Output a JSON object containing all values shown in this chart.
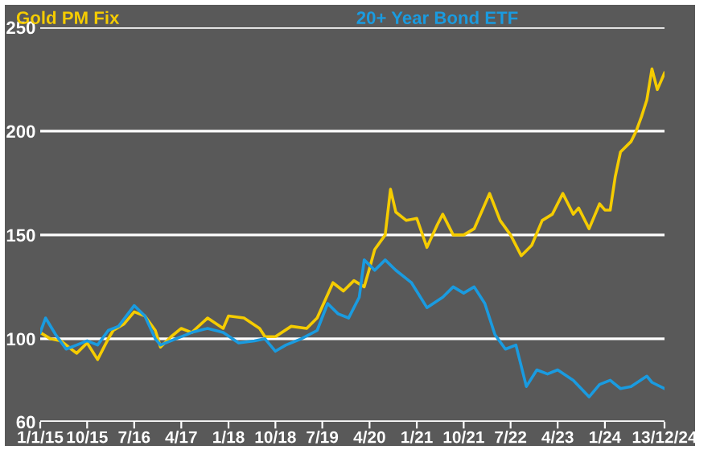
{
  "chart_data": {
    "type": "line",
    "ylim": [
      60,
      250
    ],
    "yticks": [
      60,
      100,
      150,
      200,
      250
    ],
    "grid": "y",
    "xlim": [
      "2015-01-01",
      "2024-12-13"
    ],
    "xticks": [
      {
        "value": "2015-01-01",
        "label": "1/1/15"
      },
      {
        "value": "2015-10-01",
        "label": "10/15"
      },
      {
        "value": "2016-07-01",
        "label": "7/16"
      },
      {
        "value": "2017-04-01",
        "label": "4/17"
      },
      {
        "value": "2018-01-01",
        "label": "1/18"
      },
      {
        "value": "2018-10-01",
        "label": "10/18"
      },
      {
        "value": "2019-07-01",
        "label": "7/19"
      },
      {
        "value": "2020-04-01",
        "label": "4/20"
      },
      {
        "value": "2021-01-01",
        "label": "1/21"
      },
      {
        "value": "2021-10-01",
        "label": "10/21"
      },
      {
        "value": "2022-07-01",
        "label": "7/22"
      },
      {
        "value": "2023-04-01",
        "label": "4/23"
      },
      {
        "value": "2024-01-01",
        "label": "1/24"
      },
      {
        "value": "2024-12-13",
        "label": "13/12/24"
      }
    ],
    "series": [
      {
        "name": "Gold PM Fix",
        "color": "#f5cc00",
        "x": [
          "2015-01-01",
          "2015-03",
          "2015-05",
          "2015-07",
          "2015-08",
          "2015-10",
          "2015-12",
          "2016-02",
          "2016-03",
          "2016-05",
          "2016-07",
          "2016-09",
          "2016-11",
          "2016-12",
          "2017-02",
          "2017-04",
          "2017-06",
          "2017-09",
          "2017-12",
          "2018-01",
          "2018-04",
          "2018-07",
          "2018-08",
          "2018-10",
          "2019-01",
          "2019-04",
          "2019-06",
          "2019-09",
          "2019-11",
          "2020-01",
          "2020-03",
          "2020-04",
          "2020-05",
          "2020-07",
          "2020-08",
          "2020-09",
          "2020-11",
          "2021-01",
          "2021-03",
          "2021-05",
          "2021-06",
          "2021-08",
          "2021-10",
          "2021-12",
          "2022-03",
          "2022-05",
          "2022-07",
          "2022-09",
          "2022-11",
          "2023-01",
          "2023-03",
          "2023-05",
          "2023-07",
          "2023-08",
          "2023-10",
          "2023-12",
          "2024-01",
          "2024-02",
          "2024-03",
          "2024-04",
          "2024-06",
          "2024-07",
          "2024-08",
          "2024-09",
          "2024-10",
          "2024-11",
          "2024-12-13"
        ],
        "values": [
          103,
          100,
          99,
          95,
          93,
          98,
          90,
          100,
          104,
          107,
          113,
          111,
          104,
          96,
          101,
          105,
          103,
          110,
          105,
          111,
          110,
          105,
          101,
          101,
          106,
          105,
          110,
          127,
          123,
          128,
          125,
          134,
          143,
          150,
          172,
          161,
          157,
          158,
          144,
          155,
          160,
          150,
          150,
          153,
          170,
          157,
          150,
          140,
          145,
          157,
          160,
          170,
          160,
          163,
          153,
          165,
          162,
          162,
          178,
          190,
          195,
          200,
          207,
          215,
          230,
          220,
          228
        ]
      },
      {
        "name": "20+ Year Bond ETF",
        "color": "#1a9be0",
        "x": [
          "2015-01-01",
          "2015-02",
          "2015-04",
          "2015-06",
          "2015-08",
          "2015-10",
          "2015-12",
          "2016-02",
          "2016-04",
          "2016-07",
          "2016-09",
          "2016-11",
          "2016-12",
          "2017-03",
          "2017-06",
          "2017-09",
          "2017-12",
          "2018-03",
          "2018-06",
          "2018-08",
          "2018-10",
          "2018-12",
          "2019-03",
          "2019-06",
          "2019-08",
          "2019-10",
          "2019-12",
          "2020-02",
          "2020-03",
          "2020-05",
          "2020-07",
          "2020-09",
          "2020-12",
          "2021-03",
          "2021-06",
          "2021-08",
          "2021-10",
          "2021-12",
          "2022-02",
          "2022-04",
          "2022-06",
          "2022-08",
          "2022-10",
          "2022-12",
          "2023-02",
          "2023-04",
          "2023-07",
          "2023-10",
          "2023-12",
          "2024-02",
          "2024-04",
          "2024-06",
          "2024-09",
          "2024-10",
          "2024-12-13"
        ],
        "values": [
          103,
          110,
          102,
          95,
          97,
          99,
          97,
          104,
          106,
          116,
          111,
          100,
          97,
          100,
          103,
          105,
          103,
          98,
          99,
          100,
          94,
          97,
          100,
          104,
          117,
          112,
          110,
          120,
          138,
          133,
          138,
          133,
          127,
          115,
          120,
          125,
          122,
          125,
          117,
          102,
          95,
          97,
          77,
          85,
          83,
          85,
          80,
          72,
          78,
          80,
          76,
          77,
          82,
          79,
          76
        ]
      }
    ]
  }
}
